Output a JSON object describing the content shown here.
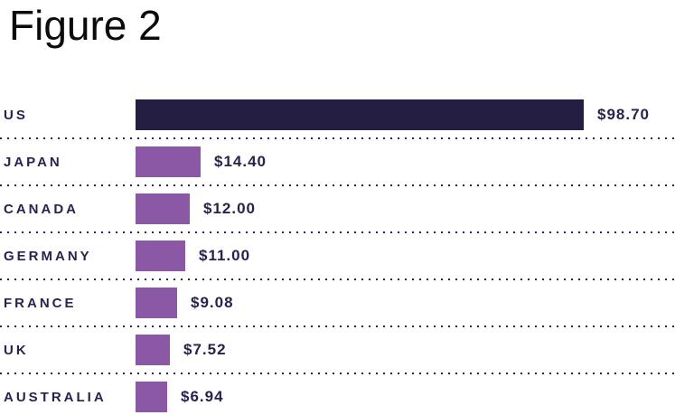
{
  "title": "Figure 2",
  "colors": {
    "background": "#ffffff",
    "title_text": "#0b0b0b",
    "label_text": "#29224d",
    "separator_dots": "#29224d",
    "highlight_bar": "#241e42",
    "bar": "#8a58a5"
  },
  "chart_data": {
    "type": "bar",
    "orientation": "horizontal",
    "title": "Figure 2",
    "categories": [
      "US",
      "JAPAN",
      "CANADA",
      "GERMANY",
      "FRANCE",
      "UK",
      "AUSTRALIA"
    ],
    "values": [
      98.7,
      14.4,
      12.0,
      11.0,
      9.08,
      7.52,
      6.94
    ],
    "value_labels": [
      "$98.70",
      "$14.40",
      "$12.00",
      "$11.00",
      "$9.08",
      "$7.52",
      "$6.94"
    ],
    "highlight_index": 0,
    "xlim": [
      0,
      98.7
    ],
    "grid": false,
    "legend": false,
    "separators": "dotted"
  }
}
